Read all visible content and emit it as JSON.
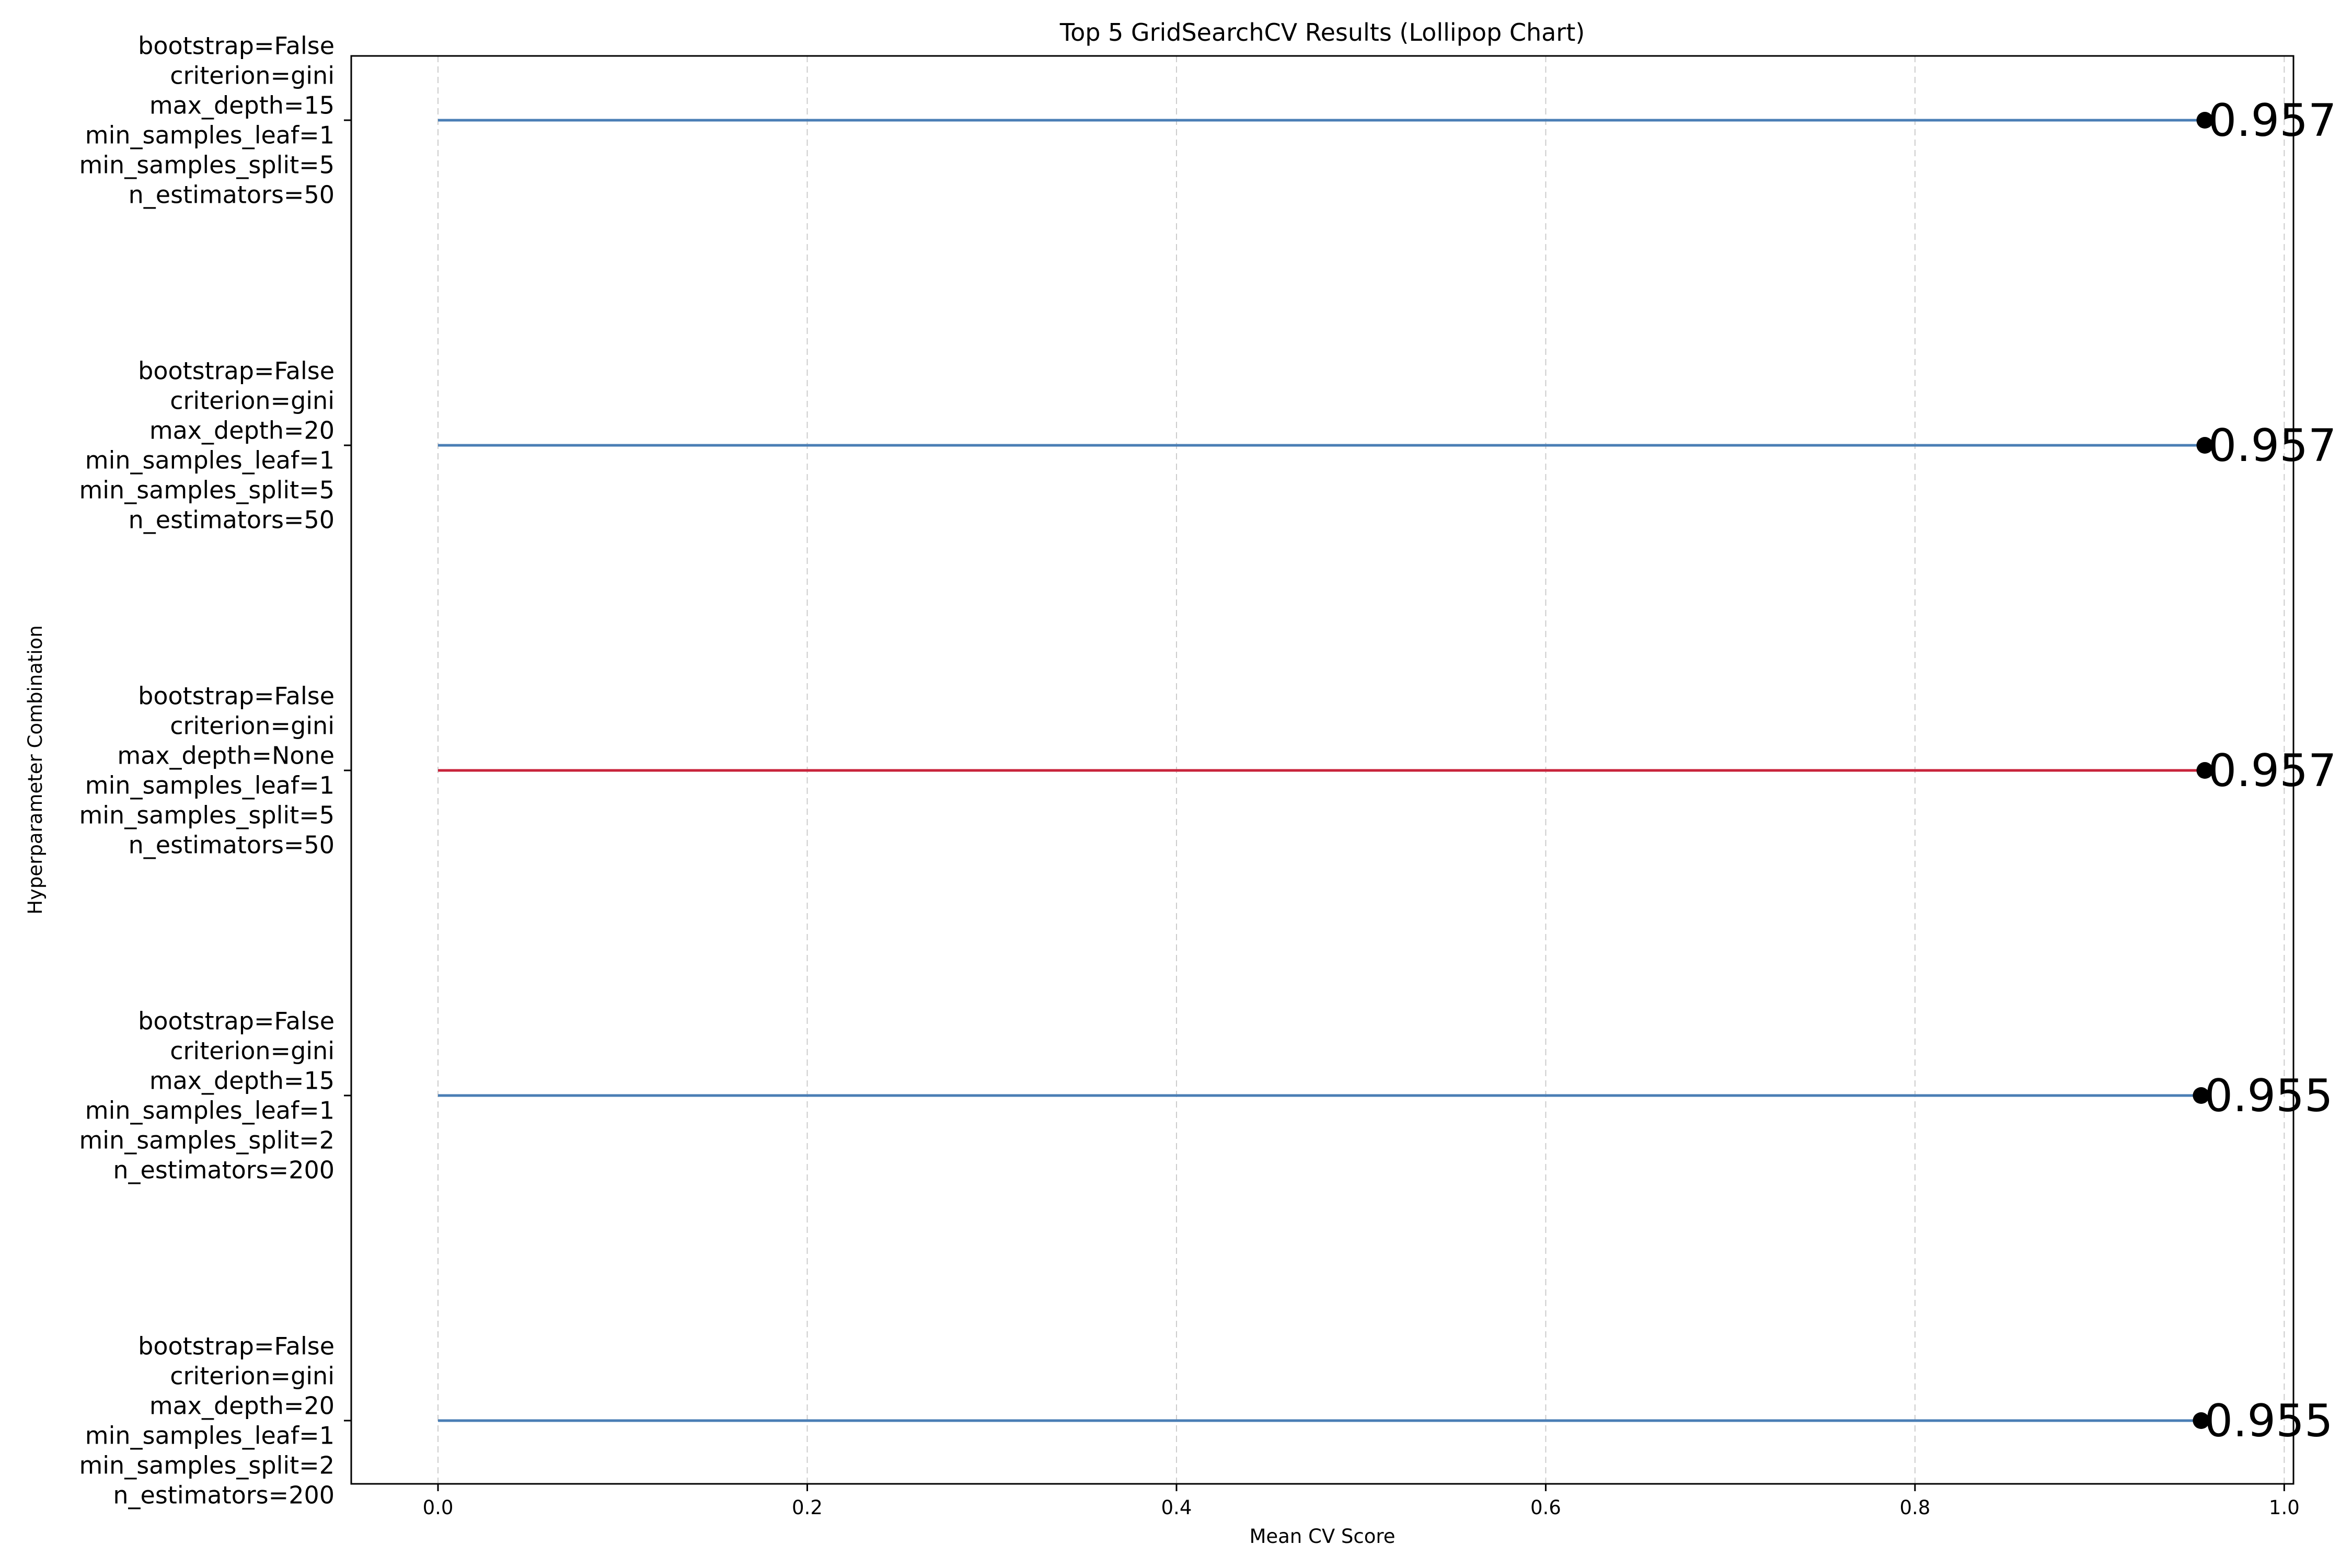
{
  "chart_data": {
    "type": "lollipop",
    "orientation": "horizontal",
    "title": "Top 5 GridSearchCV Results (Lollipop Chart)",
    "xlabel": "Mean CV Score",
    "ylabel": "Hyperparameter Combination",
    "xlim": [
      -0.047,
      1.005
    ],
    "xticks": [
      0.0,
      0.2,
      0.4,
      0.6,
      0.8,
      1.0
    ],
    "xtick_labels": [
      "0.0",
      "0.2",
      "0.4",
      "0.6",
      "0.8",
      "1.0"
    ],
    "grid": "x-dashed",
    "items": [
      {
        "label_lines": [
          "bootstrap=False",
          "criterion=gini",
          "max_depth=15",
          "min_samples_leaf=1",
          "min_samples_split=5",
          "n_estimators=50"
        ],
        "value": 0.957,
        "value_label": "0.957",
        "color": "#4a7eb5"
      },
      {
        "label_lines": [
          "bootstrap=False",
          "criterion=gini",
          "max_depth=20",
          "min_samples_leaf=1",
          "min_samples_split=5",
          "n_estimators=50"
        ],
        "value": 0.957,
        "value_label": "0.957",
        "color": "#4a7eb5"
      },
      {
        "label_lines": [
          "bootstrap=False",
          "criterion=gini",
          "max_depth=None",
          "min_samples_leaf=1",
          "min_samples_split=5",
          "n_estimators=50"
        ],
        "value": 0.957,
        "value_label": "0.957",
        "color": "#c8233b"
      },
      {
        "label_lines": [
          "bootstrap=False",
          "criterion=gini",
          "max_depth=15",
          "min_samples_leaf=1",
          "min_samples_split=2",
          "n_estimators=200"
        ],
        "value": 0.955,
        "value_label": "0.955",
        "color": "#4a7eb5"
      },
      {
        "label_lines": [
          "bootstrap=False",
          "criterion=gini",
          "max_depth=20",
          "min_samples_leaf=1",
          "min_samples_split=2",
          "n_estimators=200"
        ],
        "value": 0.955,
        "value_label": "0.955",
        "color": "#4a7eb5"
      }
    ]
  }
}
